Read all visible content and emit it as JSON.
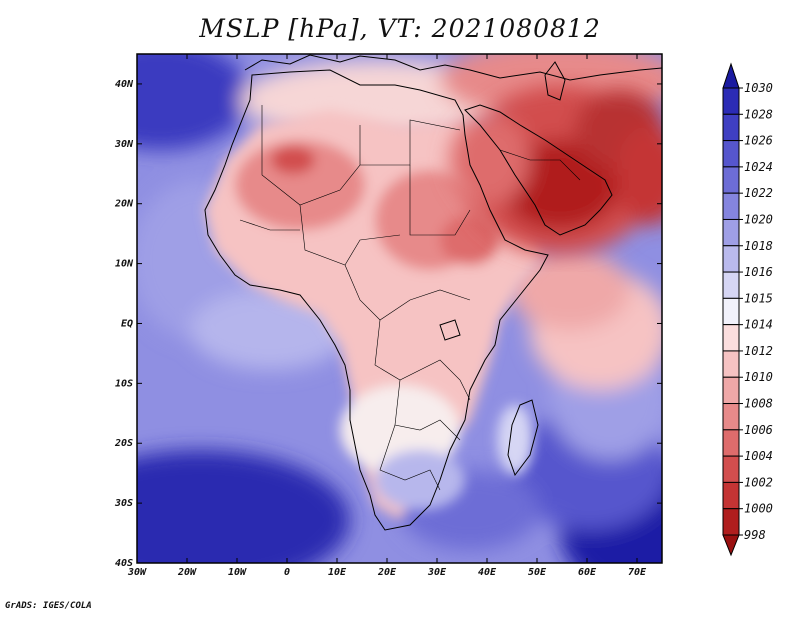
{
  "title": "MSLP [hPa], VT: 2021080812",
  "footer": "GrADS: IGES/COLA",
  "map": {
    "region": "Africa and Arabian Peninsula",
    "lon_range": [
      -30,
      75
    ],
    "lat_range": [
      -40,
      45
    ],
    "lon_ticks": [
      "30W",
      "20W",
      "10W",
      "0",
      "10E",
      "20E",
      "30E",
      "40E",
      "50E",
      "60E",
      "70E"
    ],
    "lat_ticks": [
      "40S",
      "30S",
      "20S",
      "10S",
      "EQ",
      "10N",
      "20N",
      "30N",
      "40N"
    ],
    "land_color": "#ffffff"
  },
  "colorbar": {
    "levels": [
      "1030",
      "1028",
      "1026",
      "1024",
      "1022",
      "1020",
      "1018",
      "1016",
      "1015",
      "1014",
      "1012",
      "1010",
      "1008",
      "1006",
      "1004",
      "1002",
      "1000",
      "998"
    ],
    "colors": [
      "#1a1aa0",
      "#2b2bb5",
      "#3f3fc2",
      "#5656cd",
      "#6d6dd6",
      "#8585df",
      "#9f9fe6",
      "#babaed",
      "#d6d6f4",
      "#f2f2fb",
      "#fbdede",
      "#f6c3c3",
      "#efa8a8",
      "#e78a8a",
      "#de6c6c",
      "#d24e4e",
      "#c43434",
      "#b01e1e",
      "#9a1010"
    ]
  }
}
